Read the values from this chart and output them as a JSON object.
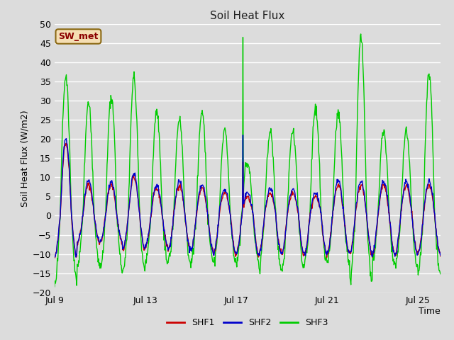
{
  "title": "Soil Heat Flux",
  "ylabel": "Soil Heat Flux (W/m2)",
  "xlabel": "Time",
  "ylim": [
    -20,
    50
  ],
  "yticks": [
    -20,
    -15,
    -10,
    -5,
    0,
    5,
    10,
    15,
    20,
    25,
    30,
    35,
    40,
    45,
    50
  ],
  "background_color": "#dcdcdc",
  "plot_bg_color": "#dcdcdc",
  "grid_color": "#ffffff",
  "shf1_color": "#cc0000",
  "shf2_color": "#0000cc",
  "shf3_color": "#00cc00",
  "line_width": 1.0,
  "legend_entries": [
    "SHF1",
    "SHF2",
    "SHF3"
  ],
  "label_box_text": "SW_met",
  "label_box_facecolor": "#f5deb3",
  "label_box_edgecolor": "#8b6914",
  "x_tick_labels": [
    "Jul 9",
    "Jul 13",
    "Jul 17",
    "Jul 21",
    "Jul 25"
  ],
  "x_tick_positions": [
    0,
    4,
    8,
    12,
    16
  ]
}
